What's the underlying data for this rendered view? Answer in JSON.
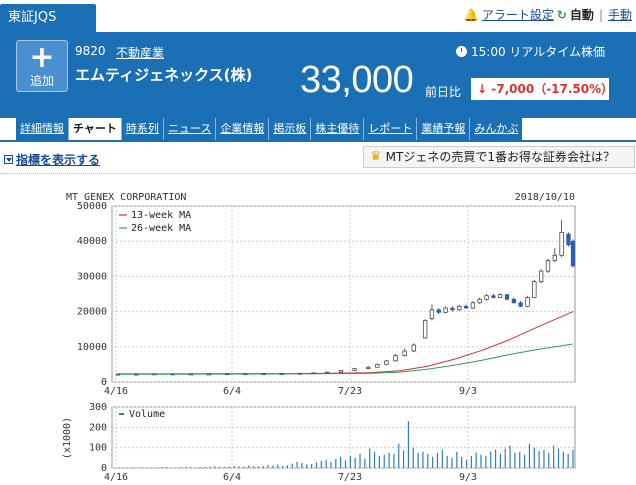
{
  "market": {
    "label": "東証JQS"
  },
  "top_links": {
    "alert": "アラート設定",
    "auto": "自動",
    "manual": "手動"
  },
  "stock": {
    "add_label": "追加",
    "code": "9820",
    "industry": "不動産業",
    "name": "エムティジェネックス(株)",
    "realtime": "15:00 リアルタイム株価",
    "price": "33,000",
    "change_label": "前日比",
    "change": "-7,000（-17.50%）"
  },
  "tabs": [
    {
      "label": "詳細情報",
      "active": false
    },
    {
      "label": "チャート",
      "active": true
    },
    {
      "label": "時系列",
      "active": false
    },
    {
      "label": "ニュース",
      "active": false
    },
    {
      "label": "企業情報",
      "active": false
    },
    {
      "label": "掲示板",
      "active": false
    },
    {
      "label": "株主優待",
      "active": false
    },
    {
      "label": "レポート",
      "active": false
    },
    {
      "label": "業績予報",
      "active": false
    },
    {
      "label": "みんかぶ",
      "active": false
    }
  ],
  "indicator_toggle": "指標を表示する",
  "promo": "MTジェネの売買で1番お得な証券会社は？",
  "colors": {
    "brand": "#1a6fb5",
    "down": "#e03030",
    "ma13": "#cc3333",
    "ma26": "#339966",
    "candle_down": "#2a5fb0",
    "volume": "#2a7fc0"
  },
  "chart_data": [
    {
      "type": "candlestick",
      "title": "MT GENEX CORPORATION",
      "date": "2018/10/10",
      "legend": [
        "13-week MA",
        "26-week MA"
      ],
      "x_ticks": [
        "4/16",
        "6/4",
        "7/23",
        "9/3"
      ],
      "y_ticks": [
        0,
        10000,
        20000,
        30000,
        40000,
        50000
      ],
      "ylim": [
        0,
        50000
      ],
      "grid": true,
      "series": [
        {
          "name": "13-week MA",
          "points": [
            [
              0,
              2300
            ],
            [
              20,
              2350
            ],
            [
              40,
              2400
            ],
            [
              55,
              2600
            ],
            [
              62,
              3200
            ],
            [
              68,
              4500
            ],
            [
              74,
              6500
            ],
            [
              80,
              9000
            ],
            [
              86,
              12000
            ],
            [
              92,
              15500
            ],
            [
              100,
              20000
            ]
          ]
        },
        {
          "name": "26-week MA",
          "points": [
            [
              0,
              2200
            ],
            [
              20,
              2250
            ],
            [
              40,
              2300
            ],
            [
              55,
              2450
            ],
            [
              62,
              2800
            ],
            [
              68,
              3600
            ],
            [
              74,
              4800
            ],
            [
              80,
              6200
            ],
            [
              86,
              7800
            ],
            [
              92,
              9200
            ],
            [
              100,
              10800
            ]
          ]
        }
      ],
      "candles": [
        [
          0,
          2200,
          2250,
          2300,
          2150
        ],
        [
          4,
          2250,
          2250,
          2300,
          2200
        ],
        [
          8,
          2250,
          2300,
          2350,
          2200
        ],
        [
          12,
          2300,
          2280,
          2350,
          2250
        ],
        [
          16,
          2280,
          2300,
          2350,
          2250
        ],
        [
          20,
          2300,
          2300,
          2350,
          2250
        ],
        [
          24,
          2300,
          2350,
          2400,
          2250
        ],
        [
          28,
          2350,
          2300,
          2400,
          2250
        ],
        [
          32,
          2300,
          2350,
          2400,
          2250
        ],
        [
          36,
          2350,
          2400,
          2450,
          2300
        ],
        [
          40,
          2400,
          2500,
          2550,
          2350
        ],
        [
          43,
          2500,
          2600,
          2650,
          2450
        ],
        [
          46,
          2600,
          2800,
          2900,
          2550
        ],
        [
          49,
          2800,
          3300,
          3400,
          2700
        ],
        [
          52,
          3300,
          3800,
          4000,
          3200
        ],
        [
          55,
          3800,
          4200,
          4500,
          3600
        ],
        [
          57,
          4200,
          5000,
          5300,
          4100
        ],
        [
          59,
          5000,
          6000,
          6300,
          4800
        ],
        [
          61,
          6000,
          7500,
          8000,
          5800
        ],
        [
          63,
          7500,
          8800,
          9500,
          7200
        ],
        [
          65,
          8800,
          10500,
          11000,
          8500
        ],
        [
          67.5,
          12500,
          17500,
          17800,
          12300
        ],
        [
          69,
          18000,
          20500,
          22000,
          17500
        ],
        [
          70.5,
          20500,
          19800,
          21000,
          19300
        ],
        [
          72,
          19800,
          21000,
          21500,
          19500
        ],
        [
          73.5,
          21000,
          20500,
          21500,
          20000
        ],
        [
          75,
          20500,
          21500,
          22000,
          20200
        ],
        [
          76.5,
          21500,
          21000,
          22000,
          20800
        ],
        [
          78,
          21000,
          22500,
          23000,
          20800
        ],
        [
          79.5,
          22500,
          23500,
          24000,
          22200
        ],
        [
          81,
          23500,
          24500,
          25000,
          23200
        ],
        [
          82.5,
          24500,
          24000,
          25000,
          23700
        ],
        [
          84,
          24000,
          24800,
          25200,
          23800
        ],
        [
          85.5,
          24800,
          23500,
          25000,
          23200
        ],
        [
          87,
          23500,
          22500,
          24000,
          22300
        ],
        [
          88.5,
          22500,
          21500,
          23000,
          21200
        ],
        [
          90,
          21500,
          24000,
          24500,
          21300
        ],
        [
          91.5,
          24000,
          28500,
          29000,
          23800
        ],
        [
          93,
          28500,
          31500,
          32000,
          28000
        ],
        [
          94.5,
          31500,
          34500,
          35000,
          31000
        ],
        [
          96,
          34500,
          36000,
          38000,
          34000
        ],
        [
          97.5,
          36000,
          42500,
          46000,
          35500
        ],
        [
          99,
          42000,
          39000,
          42500,
          38500
        ],
        [
          100,
          40000,
          33000,
          40500,
          32500
        ]
      ]
    },
    {
      "type": "bar",
      "title": "Volume",
      "ylabel": "(x1000)",
      "x_ticks": [
        "4/16",
        "6/4",
        "7/23",
        "9/3"
      ],
      "y_ticks": [
        0,
        100,
        200,
        300
      ],
      "ylim": [
        0,
        300
      ],
      "values": [
        2,
        3,
        2,
        3,
        2,
        4,
        3,
        2,
        3,
        4,
        5,
        3,
        2,
        4,
        6,
        5,
        3,
        4,
        5,
        6,
        8,
        6,
        5,
        7,
        10,
        8,
        6,
        12,
        9,
        8,
        10,
        15,
        12,
        18,
        10,
        14,
        22,
        30,
        25,
        18,
        20,
        28,
        35,
        40,
        30,
        45,
        55,
        38,
        60,
        50,
        70,
        45,
        95,
        80,
        60,
        65,
        75,
        70,
        120,
        85,
        230,
        100,
        75,
        80,
        70,
        55,
        75,
        90,
        60,
        50,
        80,
        55,
        40,
        60,
        75,
        65,
        60,
        80,
        90,
        70,
        95,
        110,
        75,
        80,
        65,
        120,
        100,
        85,
        90,
        75,
        110,
        95,
        80,
        70,
        90
      ]
    }
  ]
}
